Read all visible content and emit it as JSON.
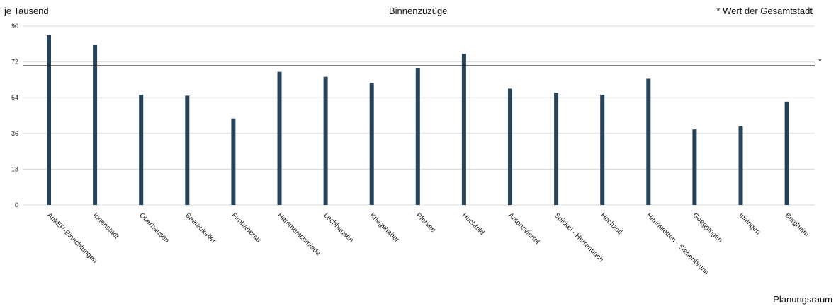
{
  "chart_data": {
    "type": "bar",
    "title": "Binnenzuzüge",
    "ylabel": "je Tausend",
    "xlabel": "Planungsraum",
    "note": "* Wert der Gesamtstadt",
    "reference_marker": "*",
    "reference_value": 70,
    "ylim": [
      0,
      90
    ],
    "yticks": [
      0,
      18,
      36,
      54,
      72,
      90
    ],
    "grid": true,
    "categories": [
      "AnkER-Einrichtungen",
      "Innenstadt",
      "Oberhausen",
      "Baerenkeller",
      "Firnhaberau",
      "Hammerschmiede",
      "Lechhausen",
      "Kriegshaber",
      "Pfersee",
      "Hochfeld",
      "Antonsviertel",
      "Spickel - Herrenbach",
      "Hochzoll",
      "Haunstetten - Siebenbrunn",
      "Goeggingen",
      "Inningen",
      "Bergheim"
    ],
    "values": [
      85.5,
      80.5,
      55.5,
      55,
      43.5,
      67,
      64.5,
      61.5,
      69,
      76,
      58.5,
      56.5,
      55.5,
      63.5,
      38,
      39.5,
      52
    ],
    "bar_color": "#26435a",
    "grid_color": "#d9d9d9",
    "reference_color": "#000000"
  }
}
